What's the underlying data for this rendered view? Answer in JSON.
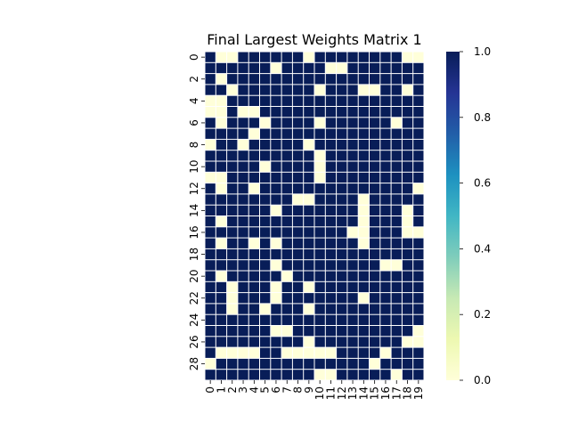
{
  "chart_data": {
    "type": "heatmap",
    "title": "Final Largest Weights Matrix 1",
    "x_ticks": [
      "0",
      "1",
      "2",
      "3",
      "4",
      "5",
      "6",
      "7",
      "8",
      "9",
      "10",
      "11",
      "12",
      "13",
      "14",
      "15",
      "16",
      "17",
      "18",
      "19"
    ],
    "y_ticks": [
      "0",
      "2",
      "4",
      "6",
      "8",
      "10",
      "12",
      "14",
      "16",
      "18",
      "20",
      "22",
      "24",
      "26",
      "28"
    ],
    "colorbar": {
      "min": 0.0,
      "max": 1.0,
      "ticks": [
        "0.0",
        "0.2",
        "0.4",
        "0.6",
        "0.8",
        "1.0"
      ],
      "colormap": "YlGnBu",
      "low_color": "#ffffd9",
      "high_color": "#081d58"
    },
    "gridline_color": "#ffffff",
    "matrix": [
      [
        1,
        0,
        0,
        1,
        1,
        1,
        1,
        1,
        1,
        0,
        1,
        1,
        1,
        1,
        1,
        1,
        1,
        1,
        0,
        0
      ],
      [
        1,
        1,
        1,
        1,
        1,
        1,
        0,
        1,
        1,
        1,
        1,
        0,
        0,
        1,
        1,
        1,
        1,
        1,
        1,
        1
      ],
      [
        1,
        0,
        1,
        1,
        1,
        1,
        1,
        1,
        1,
        1,
        1,
        1,
        1,
        1,
        1,
        1,
        1,
        1,
        1,
        1
      ],
      [
        1,
        1,
        0,
        1,
        1,
        1,
        1,
        1,
        1,
        1,
        0,
        1,
        1,
        1,
        0,
        0,
        1,
        1,
        0,
        1
      ],
      [
        0,
        0,
        1,
        1,
        1,
        1,
        1,
        1,
        1,
        1,
        1,
        1,
        1,
        1,
        1,
        1,
        1,
        1,
        1,
        1
      ],
      [
        0,
        0,
        1,
        0,
        0,
        1,
        1,
        1,
        1,
        1,
        1,
        1,
        1,
        1,
        1,
        1,
        1,
        1,
        1,
        1
      ],
      [
        1,
        0,
        1,
        1,
        1,
        0,
        1,
        1,
        1,
        1,
        0,
        1,
        1,
        1,
        1,
        1,
        1,
        0,
        1,
        1
      ],
      [
        1,
        1,
        1,
        1,
        0,
        1,
        1,
        1,
        1,
        1,
        1,
        1,
        1,
        1,
        1,
        1,
        1,
        1,
        1,
        1
      ],
      [
        0,
        1,
        1,
        0,
        1,
        1,
        1,
        1,
        1,
        0,
        1,
        1,
        1,
        1,
        1,
        1,
        1,
        1,
        1,
        1
      ],
      [
        1,
        1,
        1,
        1,
        1,
        1,
        1,
        1,
        1,
        1,
        0,
        1,
        1,
        1,
        1,
        1,
        1,
        1,
        1,
        1
      ],
      [
        1,
        1,
        1,
        1,
        1,
        0,
        1,
        1,
        1,
        1,
        0,
        1,
        1,
        1,
        1,
        1,
        1,
        1,
        1,
        1
      ],
      [
        0,
        0,
        1,
        1,
        1,
        1,
        1,
        1,
        1,
        1,
        0,
        1,
        1,
        1,
        1,
        1,
        1,
        1,
        1,
        1
      ],
      [
        1,
        0,
        1,
        1,
        0,
        1,
        1,
        1,
        1,
        1,
        1,
        1,
        1,
        1,
        1,
        1,
        1,
        1,
        1,
        0
      ],
      [
        1,
        1,
        1,
        1,
        1,
        1,
        1,
        1,
        0,
        0,
        1,
        1,
        1,
        1,
        0,
        1,
        1,
        1,
        1,
        1
      ],
      [
        1,
        1,
        1,
        1,
        1,
        1,
        0,
        1,
        1,
        1,
        1,
        1,
        1,
        1,
        0,
        1,
        1,
        1,
        0,
        1
      ],
      [
        1,
        0,
        1,
        1,
        1,
        1,
        1,
        1,
        1,
        1,
        1,
        1,
        1,
        1,
        0,
        1,
        1,
        1,
        0,
        1
      ],
      [
        1,
        1,
        1,
        1,
        1,
        1,
        1,
        1,
        1,
        1,
        1,
        1,
        1,
        0,
        0,
        1,
        1,
        1,
        0,
        0
      ],
      [
        1,
        0,
        1,
        1,
        0,
        1,
        0,
        1,
        1,
        1,
        1,
        1,
        1,
        1,
        0,
        1,
        1,
        1,
        1,
        1
      ],
      [
        1,
        1,
        1,
        1,
        1,
        1,
        1,
        1,
        1,
        1,
        1,
        1,
        1,
        1,
        1,
        1,
        1,
        1,
        1,
        1
      ],
      [
        1,
        1,
        1,
        1,
        1,
        1,
        0,
        1,
        1,
        1,
        1,
        1,
        1,
        1,
        1,
        1,
        0,
        0,
        1,
        1
      ],
      [
        1,
        0,
        1,
        1,
        1,
        1,
        1,
        0,
        1,
        1,
        1,
        1,
        1,
        1,
        1,
        1,
        1,
        1,
        1,
        1
      ],
      [
        1,
        1,
        0,
        1,
        1,
        1,
        0,
        1,
        1,
        0,
        1,
        1,
        1,
        1,
        1,
        1,
        1,
        1,
        1,
        1
      ],
      [
        1,
        1,
        0,
        1,
        1,
        1,
        0,
        1,
        1,
        1,
        1,
        1,
        1,
        1,
        0,
        1,
        1,
        1,
        1,
        1
      ],
      [
        1,
        1,
        0,
        1,
        1,
        0,
        1,
        1,
        1,
        0,
        1,
        1,
        1,
        1,
        1,
        1,
        1,
        1,
        1,
        1
      ],
      [
        1,
        1,
        1,
        1,
        1,
        1,
        1,
        1,
        1,
        1,
        1,
        1,
        1,
        1,
        1,
        1,
        1,
        1,
        1,
        1
      ],
      [
        1,
        1,
        1,
        1,
        1,
        1,
        0,
        0,
        1,
        1,
        1,
        1,
        1,
        1,
        1,
        1,
        1,
        1,
        1,
        0
      ],
      [
        1,
        1,
        1,
        1,
        1,
        1,
        1,
        1,
        1,
        0,
        1,
        1,
        1,
        1,
        1,
        1,
        1,
        1,
        0,
        0
      ],
      [
        1,
        0,
        0,
        0,
        0,
        1,
        1,
        0,
        0,
        0,
        0,
        0,
        1,
        1,
        1,
        1,
        0,
        1,
        1,
        1
      ],
      [
        0,
        1,
        1,
        1,
        1,
        1,
        1,
        1,
        1,
        1,
        1,
        1,
        1,
        1,
        1,
        0,
        1,
        1,
        1,
        1
      ],
      [
        1,
        1,
        1,
        1,
        1,
        1,
        1,
        1,
        1,
        1,
        0,
        0,
        1,
        1,
        1,
        1,
        1,
        0,
        1,
        1
      ]
    ]
  }
}
